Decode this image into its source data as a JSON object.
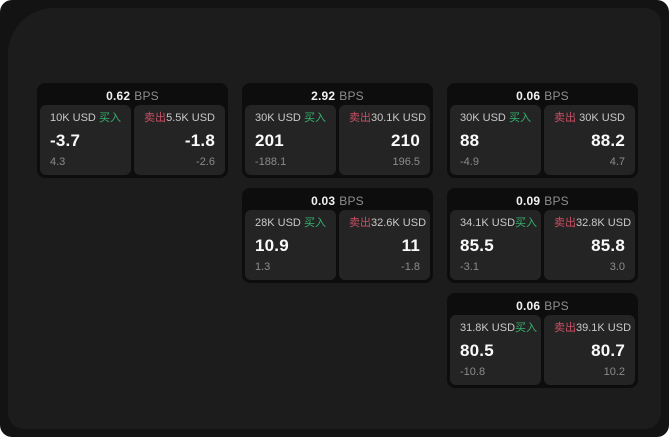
{
  "labels": {
    "bps_unit": "BPS",
    "buy": "买入",
    "sell": "卖出"
  },
  "colors": {
    "buy_accent": "#35b26e",
    "sell_accent": "#c94f63",
    "window_bg": "#131313",
    "panel_bg": "#1c1c1c",
    "card_bg": "#0d0d0d",
    "quote_panel_bg": "#242424"
  },
  "cards": [
    {
      "row": 1,
      "col": 1,
      "bps": "0.62",
      "buy": {
        "amount": "10K USD",
        "value": "-3.7",
        "secondary": "4.3"
      },
      "sell": {
        "amount": "5.5K USD",
        "value": "-1.8",
        "secondary": "-2.6"
      }
    },
    {
      "row": 1,
      "col": 2,
      "bps": "2.92",
      "buy": {
        "amount": "30K USD",
        "value": "201",
        "secondary": "-188.1"
      },
      "sell": {
        "amount": "30.1K USD",
        "value": "210",
        "secondary": "196.5"
      }
    },
    {
      "row": 1,
      "col": 3,
      "bps": "0.06",
      "buy": {
        "amount": "30K USD",
        "value": "88",
        "secondary": "-4.9"
      },
      "sell": {
        "amount": "30K USD",
        "value": "88.2",
        "secondary": "4.7"
      }
    },
    {
      "row": 2,
      "col": 2,
      "bps": "0.03",
      "buy": {
        "amount": "28K USD",
        "value": "10.9",
        "secondary": "1.3"
      },
      "sell": {
        "amount": "32.6K USD",
        "value": "11",
        "secondary": "-1.8"
      }
    },
    {
      "row": 2,
      "col": 3,
      "bps": "0.09",
      "buy": {
        "amount": "34.1K USD",
        "value": "85.5",
        "secondary": "-3.1"
      },
      "sell": {
        "amount": "32.8K USD",
        "value": "85.8",
        "secondary": "3.0"
      }
    },
    {
      "row": 3,
      "col": 3,
      "bps": "0.06",
      "buy": {
        "amount": "31.8K USD",
        "value": "80.5",
        "secondary": "-10.8"
      },
      "sell": {
        "amount": "39.1K USD",
        "value": "80.7",
        "secondary": "10.2"
      }
    }
  ]
}
